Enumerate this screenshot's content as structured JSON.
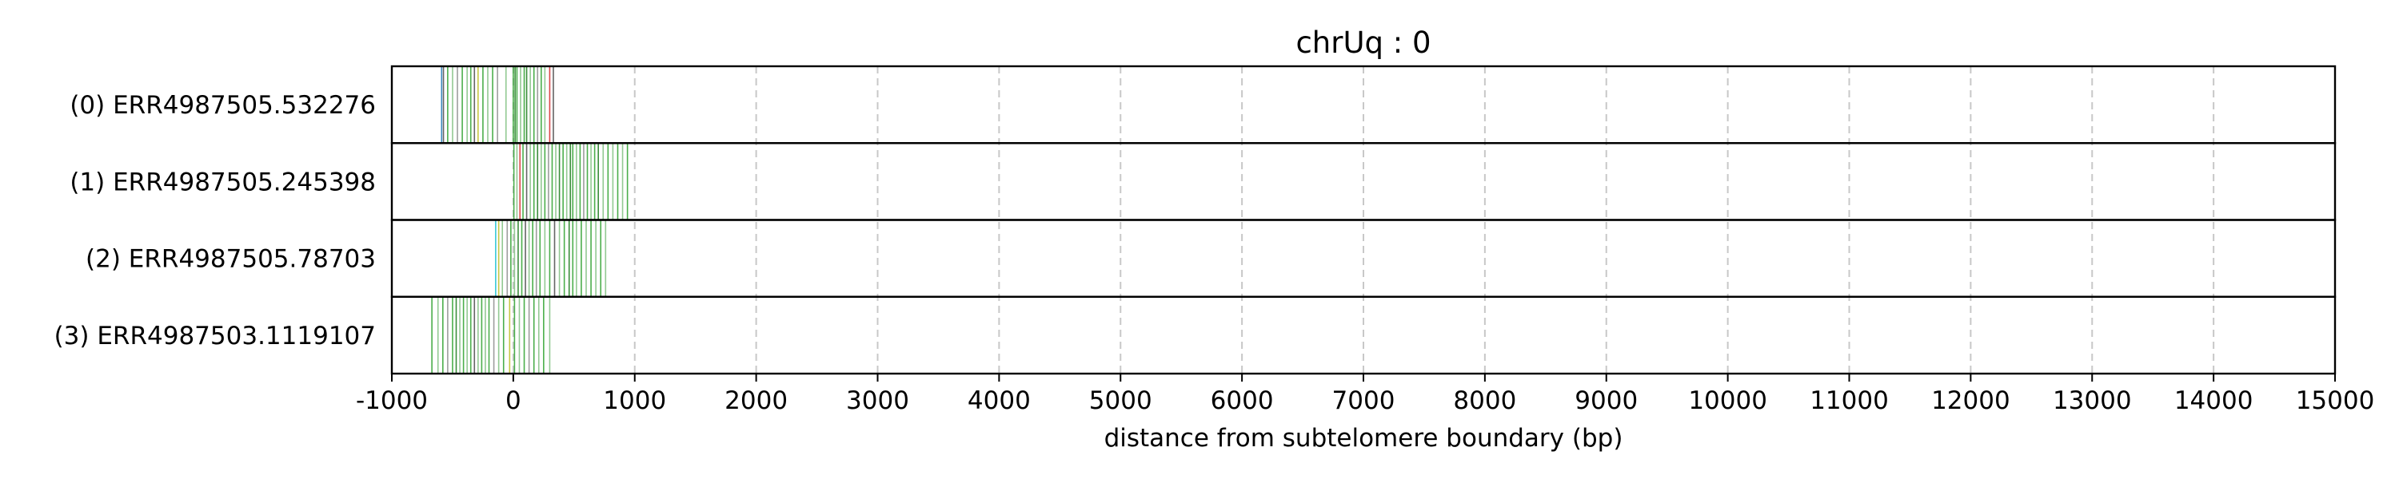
{
  "chart_data": {
    "type": "read-pileup",
    "title": "chrUq : 0",
    "xlabel": "distance from subtelomere boundary (bp)",
    "xlim": [
      -1000,
      15000
    ],
    "xticks": [
      -1000,
      0,
      1000,
      2000,
      3000,
      4000,
      5000,
      6000,
      7000,
      8000,
      9000,
      10000,
      11000,
      12000,
      13000,
      14000,
      15000
    ],
    "grid": "vertical-dashed",
    "colors": {
      "grid": "#c8c8c8",
      "frame": "#000000",
      "feature_palette": [
        "#2ca02c",
        "#1a7a1a",
        "#7fbf7f",
        "#8c8c8c",
        "#4a4a4a",
        "#1f77b4",
        "#d62728",
        "#9467bd",
        "#ff7f0e",
        "#17becf",
        "#bcbd22"
      ]
    },
    "reads": [
      {
        "label": "(0) ERR4987505.532276",
        "x_range": [
          -600,
          350
        ],
        "features": [
          {
            "x": -590,
            "c": "#1f77b4"
          },
          {
            "x": -575,
            "c": "#4a4a4a"
          },
          {
            "x": -540,
            "c": "#2ca02c"
          },
          {
            "x": -500,
            "c": "#7fbf7f"
          },
          {
            "x": -460,
            "c": "#8c8c8c"
          },
          {
            "x": -420,
            "c": "#2ca02c"
          },
          {
            "x": -380,
            "c": "#7fbf7f"
          },
          {
            "x": -350,
            "c": "#2ca02c"
          },
          {
            "x": -320,
            "c": "#4a4a4a"
          },
          {
            "x": -290,
            "c": "#bcbd22"
          },
          {
            "x": -250,
            "c": "#2ca02c"
          },
          {
            "x": -210,
            "c": "#7fbf7f"
          },
          {
            "x": -170,
            "c": "#2ca02c"
          },
          {
            "x": -130,
            "c": "#8c8c8c"
          },
          {
            "x": -60,
            "c": "#7fbf7f"
          },
          {
            "x": 0,
            "c": "#2ca02c"
          },
          {
            "x": 15,
            "c": "#1a7a1a"
          },
          {
            "x": 30,
            "c": "#2ca02c"
          },
          {
            "x": 60,
            "c": "#7fbf7f"
          },
          {
            "x": 90,
            "c": "#2ca02c"
          },
          {
            "x": 110,
            "c": "#1a7a1a"
          },
          {
            "x": 140,
            "c": "#7fbf7f"
          },
          {
            "x": 170,
            "c": "#2ca02c"
          },
          {
            "x": 200,
            "c": "#8c8c8c"
          },
          {
            "x": 230,
            "c": "#2ca02c"
          },
          {
            "x": 260,
            "c": "#7fbf7f"
          },
          {
            "x": 300,
            "c": "#d62728"
          },
          {
            "x": 330,
            "c": "#4a4a4a"
          }
        ]
      },
      {
        "label": "(1) ERR4987505.245398",
        "x_range": [
          0,
          960
        ],
        "features": [
          {
            "x": 5,
            "c": "#2ca02c"
          },
          {
            "x": 30,
            "c": "#7fbf7f"
          },
          {
            "x": 55,
            "c": "#d62728"
          },
          {
            "x": 80,
            "c": "#2ca02c"
          },
          {
            "x": 110,
            "c": "#4a4a4a"
          },
          {
            "x": 140,
            "c": "#7fbf7f"
          },
          {
            "x": 170,
            "c": "#2ca02c"
          },
          {
            "x": 200,
            "c": "#1a7a1a"
          },
          {
            "x": 230,
            "c": "#7fbf7f"
          },
          {
            "x": 260,
            "c": "#2ca02c"
          },
          {
            "x": 290,
            "c": "#8c8c8c"
          },
          {
            "x": 320,
            "c": "#2ca02c"
          },
          {
            "x": 350,
            "c": "#7fbf7f"
          },
          {
            "x": 380,
            "c": "#1a7a1a"
          },
          {
            "x": 410,
            "c": "#2ca02c"
          },
          {
            "x": 440,
            "c": "#7fbf7f"
          },
          {
            "x": 470,
            "c": "#1a7a1a"
          },
          {
            "x": 490,
            "c": "#2ca02c"
          },
          {
            "x": 520,
            "c": "#7fbf7f"
          },
          {
            "x": 550,
            "c": "#2ca02c"
          },
          {
            "x": 580,
            "c": "#8c8c8c"
          },
          {
            "x": 610,
            "c": "#2ca02c"
          },
          {
            "x": 640,
            "c": "#7fbf7f"
          },
          {
            "x": 670,
            "c": "#2ca02c"
          },
          {
            "x": 700,
            "c": "#1a7a1a"
          },
          {
            "x": 740,
            "c": "#7fbf7f"
          },
          {
            "x": 780,
            "c": "#2ca02c"
          },
          {
            "x": 820,
            "c": "#7fbf7f"
          },
          {
            "x": 860,
            "c": "#2ca02c"
          },
          {
            "x": 900,
            "c": "#7fbf7f"
          },
          {
            "x": 940,
            "c": "#2ca02c"
          }
        ]
      },
      {
        "label": "(2) ERR4987505.78703",
        "x_range": [
          -150,
          780
        ],
        "features": [
          {
            "x": -145,
            "c": "#17becf"
          },
          {
            "x": -120,
            "c": "#bcbd22"
          },
          {
            "x": -90,
            "c": "#7fbf7f"
          },
          {
            "x": -50,
            "c": "#8c8c8c"
          },
          {
            "x": -20,
            "c": "#2ca02c"
          },
          {
            "x": 10,
            "c": "#7fbf7f"
          },
          {
            "x": 40,
            "c": "#1a7a1a"
          },
          {
            "x": 70,
            "c": "#2ca02c"
          },
          {
            "x": 100,
            "c": "#4a4a4a"
          },
          {
            "x": 130,
            "c": "#7fbf7f"
          },
          {
            "x": 160,
            "c": "#2ca02c"
          },
          {
            "x": 190,
            "c": "#8c8c8c"
          },
          {
            "x": 220,
            "c": "#2ca02c"
          },
          {
            "x": 260,
            "c": "#7fbf7f"
          },
          {
            "x": 300,
            "c": "#2ca02c"
          },
          {
            "x": 340,
            "c": "#4a4a4a"
          },
          {
            "x": 380,
            "c": "#7fbf7f"
          },
          {
            "x": 420,
            "c": "#2ca02c"
          },
          {
            "x": 460,
            "c": "#1a7a1a"
          },
          {
            "x": 490,
            "c": "#2ca02c"
          },
          {
            "x": 520,
            "c": "#7fbf7f"
          },
          {
            "x": 560,
            "c": "#2ca02c"
          },
          {
            "x": 600,
            "c": "#7fbf7f"
          },
          {
            "x": 640,
            "c": "#2ca02c"
          },
          {
            "x": 680,
            "c": "#7fbf7f"
          },
          {
            "x": 720,
            "c": "#2ca02c"
          },
          {
            "x": 760,
            "c": "#7fbf7f"
          }
        ]
      },
      {
        "label": "(3) ERR4987503.1119107",
        "x_range": [
          -680,
          320
        ],
        "features": [
          {
            "x": -670,
            "c": "#2ca02c"
          },
          {
            "x": -620,
            "c": "#7fbf7f"
          },
          {
            "x": -580,
            "c": "#2ca02c"
          },
          {
            "x": -540,
            "c": "#8c8c8c"
          },
          {
            "x": -500,
            "c": "#2ca02c"
          },
          {
            "x": -470,
            "c": "#1a7a1a"
          },
          {
            "x": -440,
            "c": "#7fbf7f"
          },
          {
            "x": -410,
            "c": "#2ca02c"
          },
          {
            "x": -380,
            "c": "#7fbf7f"
          },
          {
            "x": -350,
            "c": "#2ca02c"
          },
          {
            "x": -320,
            "c": "#4a4a4a"
          },
          {
            "x": -290,
            "c": "#7fbf7f"
          },
          {
            "x": -260,
            "c": "#2ca02c"
          },
          {
            "x": -230,
            "c": "#7fbf7f"
          },
          {
            "x": -200,
            "c": "#2ca02c"
          },
          {
            "x": -160,
            "c": "#8c8c8c"
          },
          {
            "x": -120,
            "c": "#7fbf7f"
          },
          {
            "x": -80,
            "c": "#2ca02c"
          },
          {
            "x": -30,
            "c": "#bcbd22"
          },
          {
            "x": 10,
            "c": "#2ca02c"
          },
          {
            "x": 50,
            "c": "#7fbf7f"
          },
          {
            "x": 90,
            "c": "#2ca02c"
          },
          {
            "x": 130,
            "c": "#8c8c8c"
          },
          {
            "x": 170,
            "c": "#2ca02c"
          },
          {
            "x": 210,
            "c": "#7fbf7f"
          },
          {
            "x": 250,
            "c": "#2ca02c"
          },
          {
            "x": 300,
            "c": "#7fbf7f"
          }
        ]
      }
    ]
  }
}
